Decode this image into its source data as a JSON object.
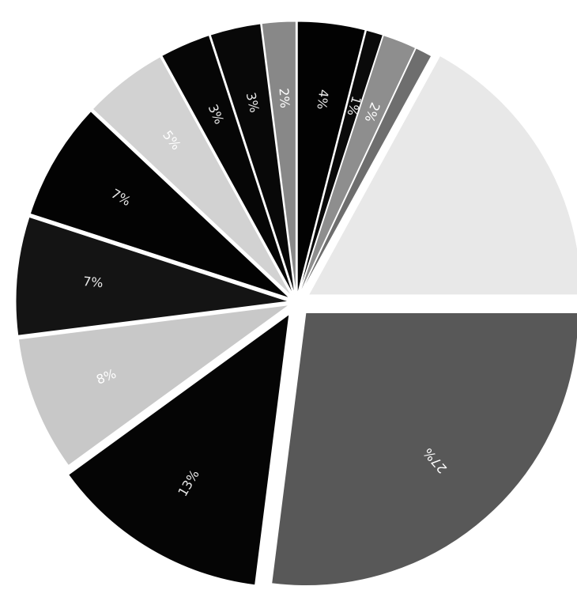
{
  "chart_data": {
    "type": "pie",
    "title": "",
    "slices": [
      {
        "label": "27%",
        "value": 27,
        "color": "#585858",
        "text_color": "#ffffff"
      },
      {
        "label": "13%",
        "value": 13,
        "color": "#050505",
        "text_color": "#e8e8e8"
      },
      {
        "label": "8%",
        "value": 8,
        "color": "#c8c8c8",
        "text_color": "#ffffff"
      },
      {
        "label": "7%",
        "value": 7,
        "color": "#141414",
        "text_color": "#e8e8e8"
      },
      {
        "label": "7%",
        "value": 7,
        "color": "#030303",
        "text_color": "#e8e8e8"
      },
      {
        "label": "5%",
        "value": 5,
        "color": "#d2d2d2",
        "text_color": "#ffffff"
      },
      {
        "label": "3%",
        "value": 3,
        "color": "#060606",
        "text_color": "#e8e8e8"
      },
      {
        "label": "3%",
        "value": 3,
        "color": "#080808",
        "text_color": "#e8e8e8"
      },
      {
        "label": "2%",
        "value": 2,
        "color": "#888888",
        "text_color": "#ffffff"
      },
      {
        "label": "4%",
        "value": 4,
        "color": "#020202",
        "text_color": "#e8e8e8"
      },
      {
        "label": "1%",
        "value": 1,
        "color": "#0a0a0a",
        "text_color": "#e8e8e8"
      },
      {
        "label": "2%",
        "value": 2,
        "color": "#8e8e8e",
        "text_color": "#ffffff"
      },
      {
        "label": "",
        "value": 1,
        "color": "#6e6e6e",
        "text_color": "#ffffff"
      },
      {
        "label": "",
        "value": 17,
        "color": "#e8e8e8",
        "text_color": "#ffffff"
      }
    ]
  }
}
